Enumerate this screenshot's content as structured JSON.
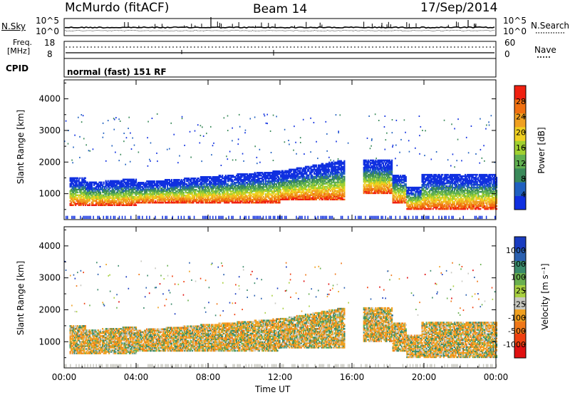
{
  "header": {
    "station": "McMurdo (fitACF)",
    "beam": "Beam 14",
    "date": "17/Sep/2014"
  },
  "noise_panel": {
    "left_label": "N.Sky",
    "right_label": "N.Search",
    "left_ticks": [
      "10^5",
      "10^0"
    ],
    "right_ticks": [
      "10^5",
      "10^0"
    ]
  },
  "freq_panel": {
    "label_line1": "Freq.",
    "label_line2": "[MHz]",
    "left_ticks": [
      "18",
      "8"
    ],
    "right_ticks": [
      "60",
      "0"
    ],
    "right_label": "Nave",
    "cpid_label": "CPID",
    "mode_text": "normal (fast) 151 RF"
  },
  "chart_data": [
    {
      "type": "heatmap",
      "name": "power",
      "ylabel": "Slant Range [km]",
      "yticks": [
        1000,
        2000,
        3000,
        4000
      ],
      "ylim": [
        180,
        4600
      ],
      "xlim": [
        0,
        24
      ],
      "xticks": [
        0,
        4,
        8,
        12,
        16,
        20,
        24
      ],
      "colorbar_label": "Power [dB]",
      "colorbar_ticks": [
        "4",
        "8",
        "12",
        "16",
        "20",
        "24",
        "28"
      ],
      "colorbar_colors": [
        "#1030e0",
        "#2060c0",
        "#3a8a5a",
        "#60b050",
        "#a0d030",
        "#f0d020",
        "#f0a020",
        "#f07010",
        "#f02010"
      ],
      "colorbar_range": [
        0,
        32
      ]
    },
    {
      "type": "heatmap",
      "name": "velocity",
      "ylabel": "Slant Range [km]",
      "yticks": [
        1000,
        2000,
        3000,
        4000
      ],
      "ylim": [
        180,
        4600
      ],
      "xlim": [
        0,
        24
      ],
      "xticks": [
        0,
        4,
        8,
        12,
        16,
        20,
        24
      ],
      "xticklabels": [
        "00:00",
        "04:00",
        "08:00",
        "12:00",
        "16:00",
        "20:00",
        "00:00"
      ],
      "xlabel": "Time UT",
      "colorbar_label": "Velocity [m s⁻¹]",
      "colorbar_ticks": [
        "1000",
        "500",
        "100",
        "25",
        "-25",
        "-100",
        "-500",
        "-1000"
      ],
      "colorbar_colors": [
        "#1a3cc0",
        "#2a60b0",
        "#3a8a6a",
        "#6ab050",
        "#a8d040",
        "#c8c8c0",
        "#f0a020",
        "#f07818",
        "#f04010",
        "#e01010"
      ]
    }
  ]
}
